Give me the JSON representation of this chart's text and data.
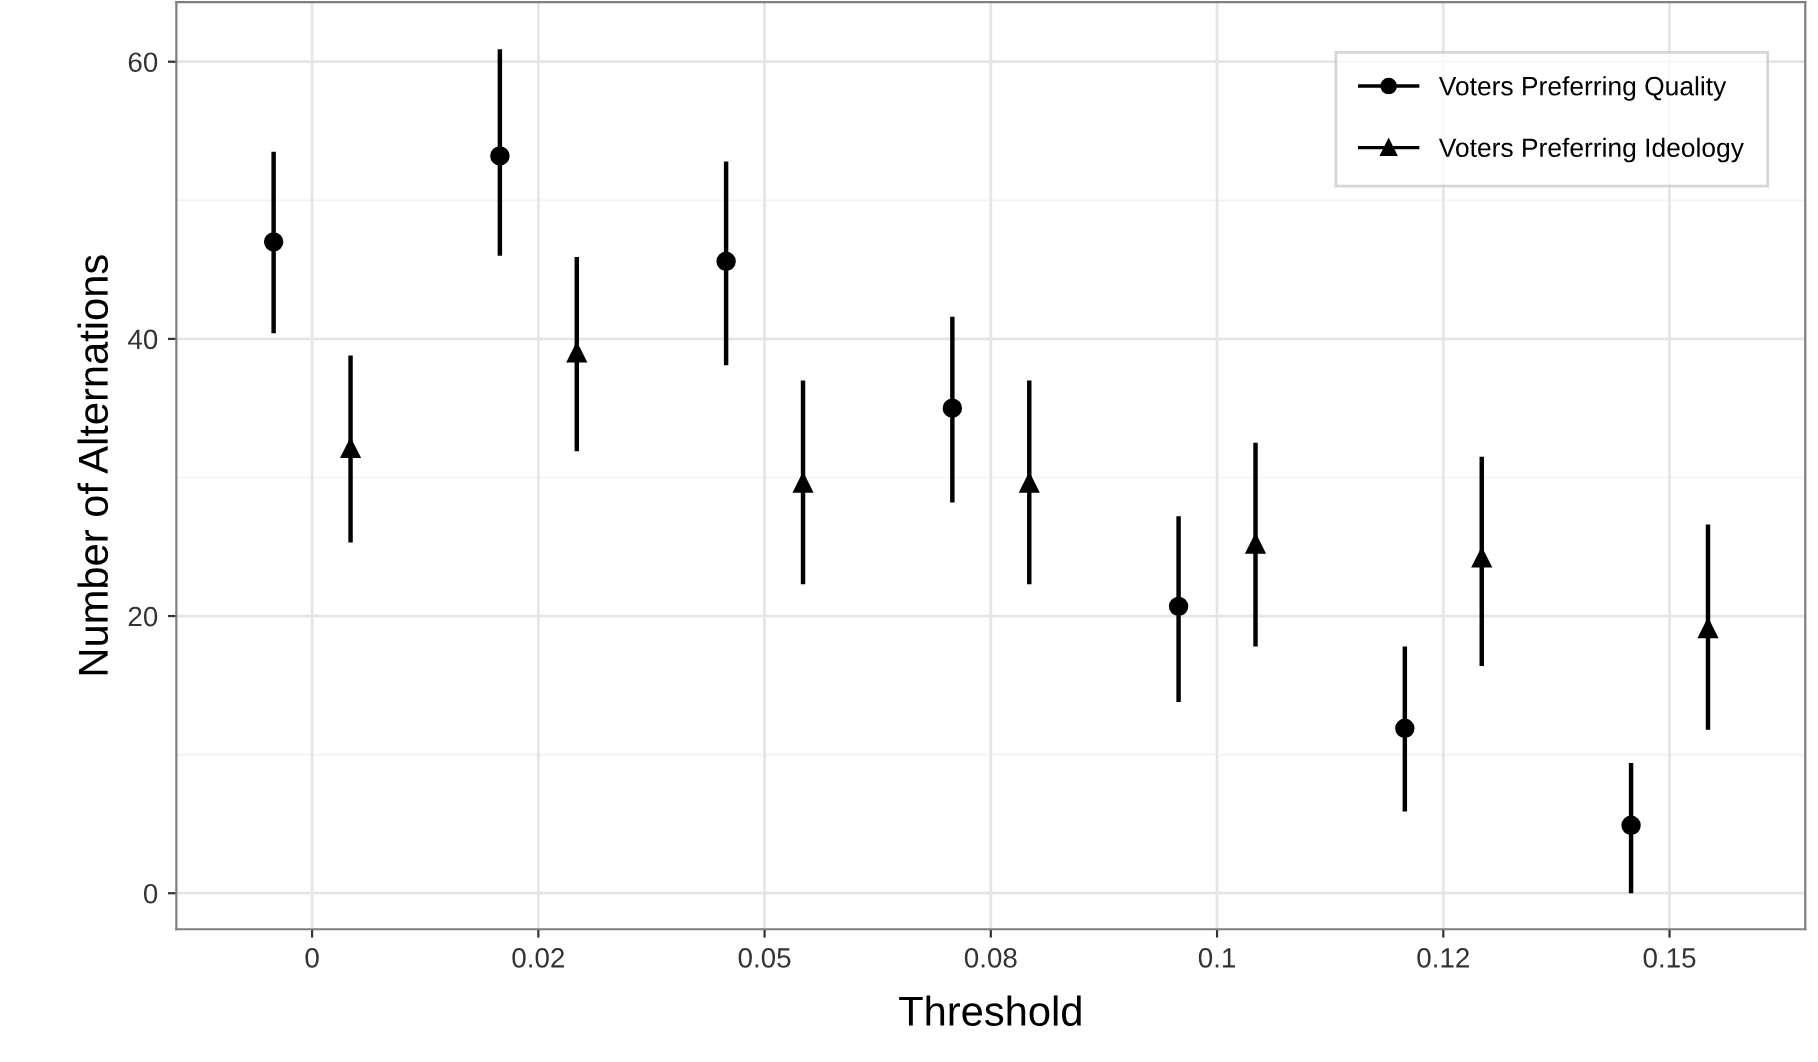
{
  "chart_data": {
    "type": "scatter",
    "xlabel": "Threshold",
    "ylabel": "Number of Alternations",
    "categories": [
      "0",
      "0.02",
      "0.05",
      "0.08",
      "0.1",
      "0.12",
      "0.15"
    ],
    "series": [
      {
        "name": "Voters Preferring Quality",
        "color": "#000000",
        "marker": "circle",
        "values": [
          47.0,
          53.2,
          45.6,
          35.0,
          20.7,
          11.9,
          4.9
        ],
        "errors": [
          [
            40.4,
            53.5
          ],
          [
            46.0,
            60.9
          ],
          [
            38.1,
            52.8
          ],
          [
            28.2,
            41.6
          ],
          [
            13.8,
            27.2
          ],
          [
            5.9,
            17.8
          ],
          [
            0.0,
            9.4
          ]
        ]
      },
      {
        "name": "Voters Preferring Ideology",
        "color": "#000000",
        "marker": "triangle",
        "values": [
          32.1,
          39.0,
          29.6,
          29.6,
          25.2,
          24.2,
          19.1
        ],
        "errors": [
          [
            25.3,
            38.8
          ],
          [
            31.9,
            45.9
          ],
          [
            22.3,
            37.0
          ],
          [
            22.3,
            37.0
          ],
          [
            17.8,
            32.5
          ],
          [
            16.4,
            31.5
          ],
          [
            11.8,
            26.6
          ]
        ]
      }
    ],
    "ylim": [
      -2.6,
      64.3
    ],
    "yticks": [
      0,
      20,
      40,
      60
    ],
    "grid": true,
    "legend": "top right"
  }
}
